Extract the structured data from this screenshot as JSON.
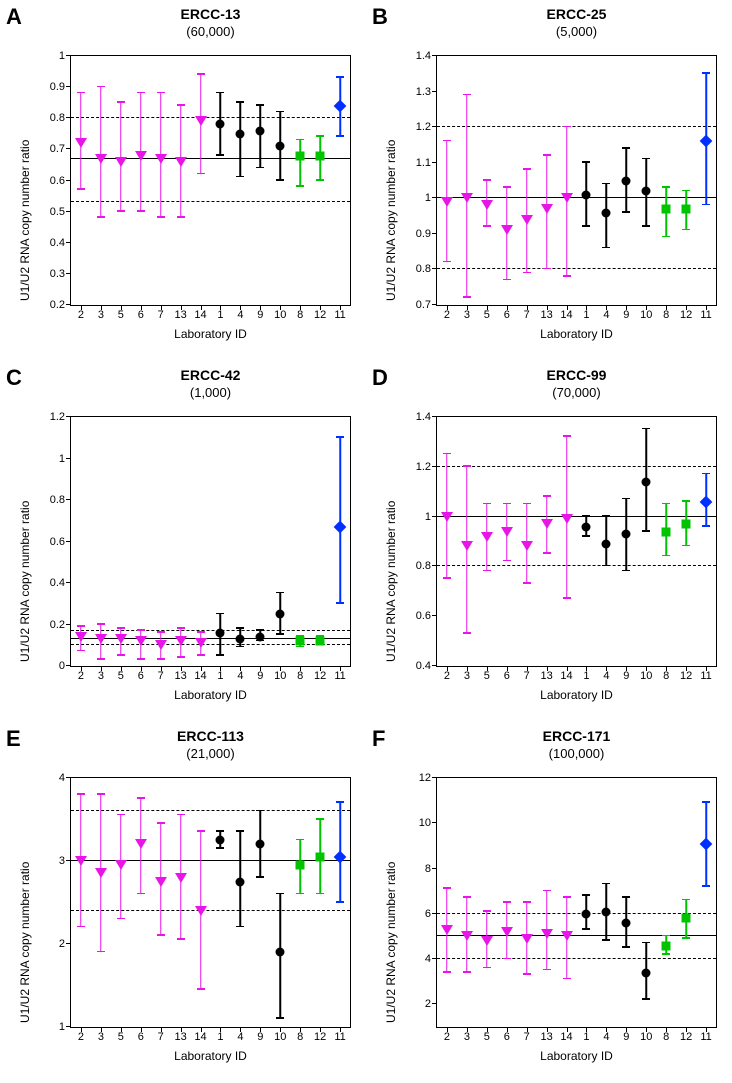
{
  "xlabel": "Laboratory ID",
  "ylabel": "U1/U2 RNA copy number ratio",
  "categories": [
    "2",
    "3",
    "5",
    "6",
    "7",
    "13",
    "14",
    "1",
    "4",
    "9",
    "10",
    "8",
    "12",
    "11"
  ],
  "colors": {
    "magenta": "#e815e8",
    "black": "#000000",
    "green": "#00c400",
    "blue": "#0030ff"
  },
  "group_colors": [
    "magenta",
    "magenta",
    "magenta",
    "magenta",
    "magenta",
    "magenta",
    "magenta",
    "black",
    "black",
    "black",
    "black",
    "green",
    "green",
    "blue"
  ],
  "group_shapes": [
    "tri",
    "tri",
    "tri",
    "tri",
    "tri",
    "tri",
    "tri",
    "circ",
    "circ",
    "circ",
    "circ",
    "sq",
    "sq",
    "dia"
  ],
  "panels": {
    "A": {
      "title": "ERCC-13",
      "subtitle": "(60,000)",
      "ymin": 0.2,
      "ymax": 1.0,
      "yticks": [
        0.2,
        0.3,
        0.4,
        0.5,
        0.6,
        0.7,
        0.8,
        0.9,
        1.0
      ],
      "ref": 0.67,
      "band": [
        0.53,
        0.8
      ],
      "y": [
        0.72,
        0.67,
        0.66,
        0.68,
        0.67,
        0.66,
        0.79,
        0.78,
        0.75,
        0.76,
        0.71,
        0.68,
        0.68,
        0.84
      ],
      "lo": [
        0.57,
        0.48,
        0.5,
        0.5,
        0.48,
        0.48,
        0.62,
        0.68,
        0.61,
        0.64,
        0.6,
        0.58,
        0.6,
        0.74
      ],
      "hi": [
        0.88,
        0.9,
        0.85,
        0.88,
        0.88,
        0.84,
        0.94,
        0.88,
        0.85,
        0.84,
        0.82,
        0.73,
        0.74,
        0.93
      ]
    },
    "B": {
      "title": "ERCC-25",
      "subtitle": "(5,000)",
      "ymin": 0.7,
      "ymax": 1.4,
      "yticks": [
        0.7,
        0.8,
        0.9,
        1.0,
        1.1,
        1.2,
        1.3,
        1.4
      ],
      "ref": 1.0,
      "band": [
        0.8,
        1.2
      ],
      "y": [
        0.99,
        1.0,
        0.98,
        0.91,
        0.94,
        0.97,
        1.0,
        1.01,
        0.96,
        1.05,
        1.02,
        0.97,
        0.97,
        1.16
      ],
      "lo": [
        0.82,
        0.72,
        0.92,
        0.77,
        0.79,
        0.8,
        0.78,
        0.92,
        0.86,
        0.96,
        0.92,
        0.89,
        0.91,
        0.98
      ],
      "hi": [
        1.16,
        1.29,
        1.05,
        1.03,
        1.08,
        1.12,
        1.2,
        1.1,
        1.04,
        1.14,
        1.11,
        1.03,
        1.02,
        1.35
      ]
    },
    "C": {
      "title": "ERCC-42",
      "subtitle": "(1,000)",
      "ymin": 0.0,
      "ymax": 1.2,
      "yticks": [
        0.0,
        0.2,
        0.4,
        0.6,
        0.8,
        1.0,
        1.2
      ],
      "ref": 0.13,
      "band": [
        0.1,
        0.17
      ],
      "y": [
        0.14,
        0.13,
        0.13,
        0.12,
        0.1,
        0.12,
        0.11,
        0.16,
        0.13,
        0.14,
        0.25,
        0.12,
        0.12,
        0.67
      ],
      "lo": [
        0.07,
        0.03,
        0.05,
        0.03,
        0.03,
        0.04,
        0.05,
        0.05,
        0.09,
        0.12,
        0.15,
        0.09,
        0.1,
        0.3
      ],
      "hi": [
        0.19,
        0.2,
        0.18,
        0.17,
        0.16,
        0.18,
        0.16,
        0.25,
        0.18,
        0.17,
        0.35,
        0.14,
        0.14,
        1.1
      ]
    },
    "D": {
      "title": "ERCC-99",
      "subtitle": "(70,000)",
      "ymin": 0.4,
      "ymax": 1.4,
      "yticks": [
        0.4,
        0.6,
        0.8,
        1.0,
        1.2,
        1.4
      ],
      "ref": 1.0,
      "band": [
        0.8,
        1.2
      ],
      "y": [
        1.0,
        0.88,
        0.92,
        0.94,
        0.88,
        0.97,
        0.99,
        0.96,
        0.89,
        0.93,
        1.14,
        0.94,
        0.97,
        1.06
      ],
      "lo": [
        0.75,
        0.53,
        0.78,
        0.82,
        0.73,
        0.85,
        0.67,
        0.92,
        0.8,
        0.78,
        0.94,
        0.84,
        0.88,
        0.96
      ],
      "hi": [
        1.25,
        1.2,
        1.05,
        1.05,
        1.05,
        1.08,
        1.32,
        1.0,
        1.0,
        1.07,
        1.35,
        1.05,
        1.06,
        1.17
      ]
    },
    "E": {
      "title": "ERCC-113",
      "subtitle": "(21,000)",
      "ymin": 1.0,
      "ymax": 4.0,
      "yticks": [
        1,
        2,
        3,
        4
      ],
      "ref": 3.0,
      "band": [
        2.4,
        3.6
      ],
      "y": [
        3.0,
        2.85,
        2.95,
        3.2,
        2.75,
        2.8,
        2.4,
        3.25,
        2.75,
        3.2,
        1.9,
        2.95,
        3.05,
        3.05
      ],
      "lo": [
        2.2,
        1.9,
        2.3,
        2.6,
        2.1,
        2.05,
        1.45,
        3.15,
        2.2,
        2.8,
        1.1,
        2.6,
        2.6,
        2.5
      ],
      "hi": [
        3.8,
        3.8,
        3.55,
        3.75,
        3.45,
        3.55,
        3.35,
        3.35,
        3.35,
        3.6,
        2.6,
        3.25,
        3.5,
        3.7
      ]
    },
    "F": {
      "title": "ERCC-171",
      "subtitle": "(100,000)",
      "ymin": 1.0,
      "ymax": 12.0,
      "yticks": [
        2,
        4,
        6,
        8,
        10,
        12
      ],
      "ref": 5.0,
      "band": [
        4.0,
        6.0
      ],
      "y": [
        5.3,
        5.0,
        4.8,
        5.2,
        4.9,
        5.1,
        5.0,
        6.0,
        6.1,
        5.6,
        3.4,
        4.6,
        5.8,
        9.1
      ],
      "lo": [
        3.4,
        3.4,
        3.6,
        4.0,
        3.3,
        3.5,
        3.1,
        5.3,
        4.8,
        4.5,
        2.2,
        4.2,
        4.9,
        7.2
      ],
      "hi": [
        7.1,
        6.7,
        6.1,
        6.5,
        6.5,
        7.0,
        6.7,
        6.8,
        7.3,
        6.7,
        4.7,
        5.0,
        6.6,
        10.9
      ]
    }
  }
}
